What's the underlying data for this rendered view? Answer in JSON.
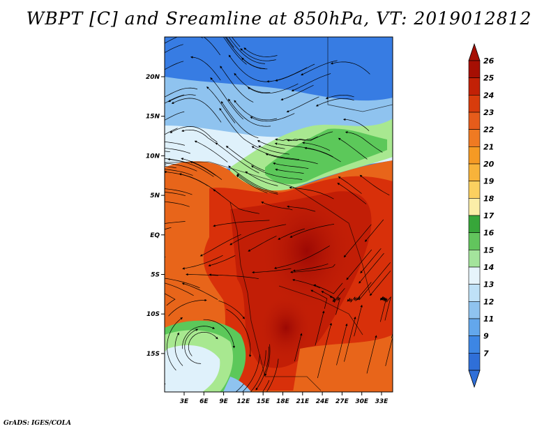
{
  "title": "WBPT [C] and Sreamline at 850hPa, VT: 2019012812",
  "footer": "GrADS: IGES/COLA",
  "map": {
    "lon_ticks": [
      "3E",
      "6E",
      "9E",
      "12E",
      "15E",
      "18E",
      "21E",
      "24E",
      "27E",
      "30E",
      "33E"
    ],
    "lat_ticks": [
      "20N",
      "15N",
      "10N",
      "5N",
      "EQ",
      "5S",
      "10S",
      "15S"
    ],
    "colors": {
      "very_warm": "#a50a04",
      "warm": "#d8300a",
      "orange": "#e8651a",
      "green": "#5cc85a",
      "light_green": "#a8e890",
      "pale": "#dff1fb",
      "light_blue": "#8fc3ef",
      "blue": "#3d86e4",
      "streamline": "#000000"
    }
  },
  "colorbar": {
    "labels": [
      "26",
      "25",
      "24",
      "23",
      "22",
      "21",
      "20",
      "19",
      "18",
      "17",
      "16",
      "15",
      "14",
      "13",
      "12",
      "11",
      "9",
      "7"
    ],
    "colors": [
      "#a60f03",
      "#c22106",
      "#d83c0c",
      "#e65c1b",
      "#ef7a22",
      "#f59a24",
      "#f8b33a",
      "#fbd060",
      "#fbeea8",
      "#37a63a",
      "#62c55d",
      "#a4e49c",
      "#e6f4fb",
      "#bfe1f7",
      "#8fc3ef",
      "#63a7ec",
      "#3d86e4",
      "#2f6fd8"
    ]
  }
}
